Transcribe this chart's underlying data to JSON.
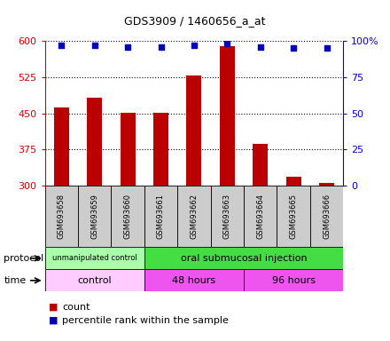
{
  "title": "GDS3909 / 1460656_a_at",
  "samples": [
    "GSM693658",
    "GSM693659",
    "GSM693660",
    "GSM693661",
    "GSM693662",
    "GSM693663",
    "GSM693664",
    "GSM693665",
    "GSM693666"
  ],
  "bar_values": [
    462,
    483,
    451,
    451,
    528,
    590,
    386,
    318,
    306
  ],
  "percentile_values": [
    97,
    97,
    96,
    96,
    97,
    98,
    96,
    95,
    95
  ],
  "ylim_left": [
    300,
    600
  ],
  "ylim_right": [
    0,
    100
  ],
  "yticks_left": [
    300,
    375,
    450,
    525,
    600
  ],
  "yticks_right": [
    0,
    25,
    50,
    75,
    100
  ],
  "bar_color": "#bb0000",
  "dot_color": "#0000bb",
  "bar_width": 0.45,
  "protocol_label1": "unmanipulated control",
  "protocol_label2": "oral submucosal injection",
  "protocol_color1": "#aaffaa",
  "protocol_color2": "#44dd44",
  "time_label1": "control",
  "time_label2": "48 hours",
  "time_label3": "96 hours",
  "time_color1": "#ffccff",
  "time_color2": "#ee55ee",
  "time_color3": "#ee55ee",
  "legend_count_color": "#bb0000",
  "legend_pct_color": "#0000bb",
  "bg_color": "#ffffff",
  "left_axis_color": "#cc0000",
  "right_axis_color": "#0000cc",
  "sample_box_color": "#cccccc"
}
